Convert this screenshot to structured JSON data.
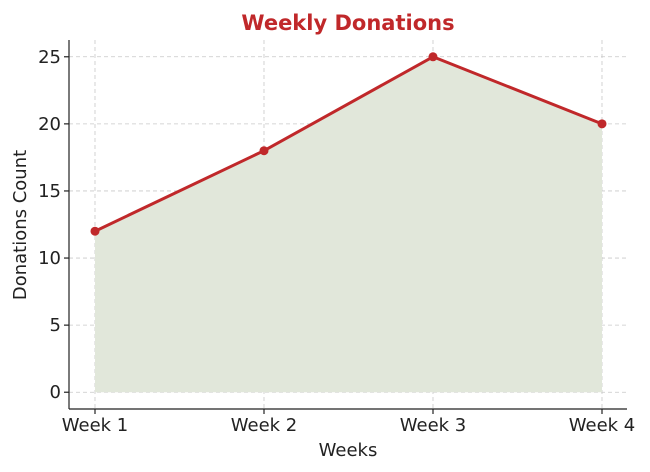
{
  "chart_data": {
    "type": "area",
    "title": "Weekly Donations",
    "xlabel": "Weeks",
    "ylabel": "Donations Count",
    "categories": [
      "Week 1",
      "Week 2",
      "Week 3",
      "Week 4"
    ],
    "values": [
      12,
      18,
      25,
      20
    ],
    "ylim": [
      -1.25,
      26.25
    ],
    "yticks": [
      0,
      5,
      10,
      15,
      20,
      25
    ],
    "grid": true,
    "colors": {
      "title": "#c0282a",
      "line": "#c0282a",
      "fill": "#e1e7da",
      "marker": "#c0282a"
    }
  }
}
